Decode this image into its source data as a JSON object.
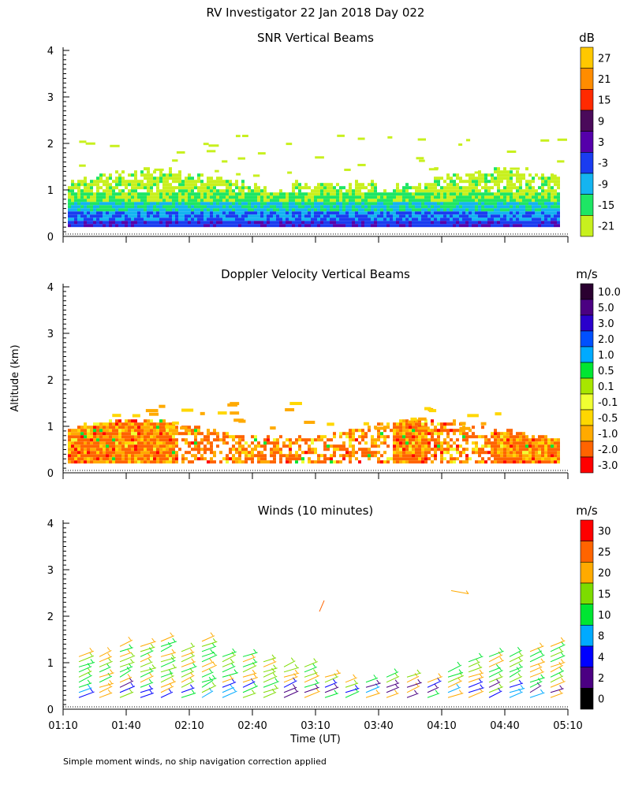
{
  "page": {
    "title": "RV Investigator  22 Jan 2018 Day 022",
    "ylabel": "Altitude (km)",
    "xlabel": "Time (UT)",
    "footnote": "Simple moment winds, no ship navigation correction applied"
  },
  "chart_data": [
    {
      "type": "heatmap",
      "title": "SNR Vertical Beams",
      "unit": "dB",
      "x_ticks": [
        "01:10",
        "01:40",
        "02:10",
        "02:40",
        "03:10",
        "03:40",
        "04:10",
        "04:40",
        "05:10"
      ],
      "y_ticks": [
        "0",
        "1",
        "2",
        "3",
        "4"
      ],
      "ylim": [
        0,
        4
      ],
      "colorbar": {
        "labels": [
          "27",
          "21",
          "15",
          "9",
          "3",
          "-3",
          "-9",
          "-15",
          "-21"
        ],
        "colors": [
          "#ffc800",
          "#ff8c00",
          "#ff2a00",
          "#4a0a5a",
          "#5500aa",
          "#1a3cf0",
          "#14b4f0",
          "#1ee664",
          "#c8f01e"
        ]
      }
    },
    {
      "type": "heatmap",
      "title": "Doppler Velocity Vertical Beams",
      "unit": "m/s",
      "x_ticks": [
        "01:10",
        "01:40",
        "02:10",
        "02:40",
        "03:10",
        "03:40",
        "04:10",
        "04:40",
        "05:10"
      ],
      "y_ticks": [
        "0",
        "1",
        "2",
        "3",
        "4"
      ],
      "ylim": [
        0,
        4
      ],
      "colorbar": {
        "labels": [
          "10.0",
          "5.0",
          "3.0",
          "2.0",
          "1.0",
          "0.5",
          "0.1",
          "-0.1",
          "-0.5",
          "-1.0",
          "-2.0",
          "-3.0"
        ],
        "colors": [
          "#2a0030",
          "#4b0082",
          "#2a00cc",
          "#0050ff",
          "#00aaff",
          "#00e632",
          "#a8e600",
          "#f0ff32",
          "#ffd700",
          "#ffaa00",
          "#ff6400",
          "#ff0000"
        ]
      }
    },
    {
      "type": "scatter",
      "title": "Winds (10 minutes)",
      "unit": "m/s",
      "x_ticks": [
        "01:10",
        "01:40",
        "02:10",
        "02:40",
        "03:10",
        "03:40",
        "04:10",
        "04:40",
        "05:10"
      ],
      "y_ticks": [
        "0",
        "1",
        "2",
        "3",
        "4"
      ],
      "ylim": [
        0,
        4
      ],
      "colorbar": {
        "labels": [
          "30",
          "25",
          "20",
          "15",
          "10",
          "8",
          "4",
          "2",
          "0"
        ],
        "colors": [
          "#ff0000",
          "#ff6400",
          "#ffaa00",
          "#7ddc00",
          "#00e632",
          "#00aaff",
          "#0000ff",
          "#4b0082",
          "#000000"
        ]
      }
    }
  ]
}
